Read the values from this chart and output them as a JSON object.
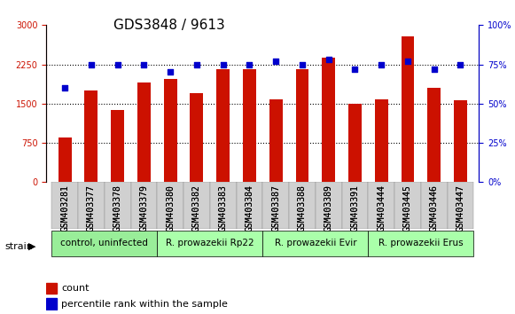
{
  "title": "GDS3848 / 9613",
  "samples": [
    "GSM403281",
    "GSM403377",
    "GSM403378",
    "GSM403379",
    "GSM403380",
    "GSM403382",
    "GSM403383",
    "GSM403384",
    "GSM403387",
    "GSM403388",
    "GSM403389",
    "GSM403391",
    "GSM403444",
    "GSM403445",
    "GSM403446",
    "GSM403447"
  ],
  "counts": [
    850,
    1750,
    1380,
    1900,
    1980,
    1700,
    2150,
    2150,
    1580,
    2150,
    2380,
    1490,
    1590,
    2780,
    1800,
    1570
  ],
  "percentiles": [
    60,
    75,
    75,
    75,
    70,
    75,
    75,
    75,
    77,
    75,
    78,
    72,
    75,
    77,
    72,
    75
  ],
  "ylim_left": [
    0,
    3000
  ],
  "ylim_right": [
    0,
    100
  ],
  "yticks_left": [
    0,
    750,
    1500,
    2250,
    3000
  ],
  "yticks_right": [
    0,
    25,
    50,
    75,
    100
  ],
  "bar_color": "#cc1100",
  "dot_color": "#0000cc",
  "grid_color": "#000000",
  "bg_color": "#ffffff",
  "plot_bg": "#ffffff",
  "strain_groups": [
    {
      "label": "control, uninfected",
      "start": 0,
      "end": 4,
      "color": "#99ee99"
    },
    {
      "label": "R. prowazekii Rp22",
      "start": 4,
      "end": 8,
      "color": "#aaffaa"
    },
    {
      "label": "R. prowazekii Evir",
      "start": 8,
      "end": 12,
      "color": "#aaffaa"
    },
    {
      "label": "R. prowazekii Erus",
      "start": 12,
      "end": 16,
      "color": "#aaffaa"
    }
  ],
  "legend_items": [
    {
      "label": "count",
      "color": "#cc1100",
      "marker": "s"
    },
    {
      "label": "percentile rank within the sample",
      "color": "#0000cc",
      "marker": "s"
    }
  ],
  "left_axis_color": "#cc1100",
  "right_axis_color": "#0000cc",
  "strain_label": "strain",
  "title_fontsize": 11,
  "tick_fontsize": 7,
  "label_fontsize": 8,
  "strain_fontsize": 7.5
}
